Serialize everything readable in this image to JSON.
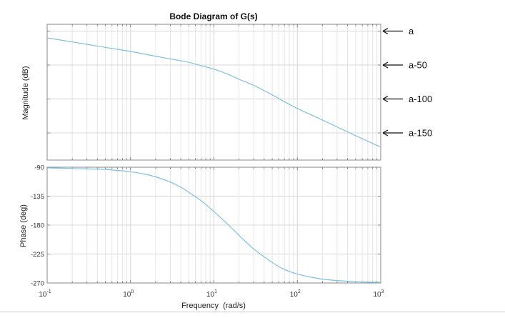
{
  "chart_data": {
    "type": "line",
    "title": "Bode Diagram of G(s)",
    "xlabel": "Frequency  (rad/s)",
    "x_scale": "log",
    "xlim": [
      0.1,
      1000
    ],
    "x_ticks": [
      {
        "value": 0.1,
        "base": "10",
        "exp": "-1"
      },
      {
        "value": 1,
        "base": "10",
        "exp": "0"
      },
      {
        "value": 10,
        "base": "10",
        "exp": "1"
      },
      {
        "value": 100,
        "base": "10",
        "exp": "2"
      },
      {
        "value": 1000,
        "base": "10",
        "exp": "3"
      }
    ],
    "grid": true,
    "line_color": "#7fbfe2",
    "magnitude": {
      "ylabel": "Magnitude (dB)",
      "ylim": [
        -190,
        10
      ],
      "annotations": [
        {
          "label": "a",
          "value": 0
        },
        {
          "label": "a-50",
          "value": -50
        },
        {
          "label": "a-100",
          "value": -100
        },
        {
          "label": "a-150",
          "value": -150
        }
      ],
      "series": [
        {
          "x": [
            0.1,
            0.2,
            0.5,
            1,
            2,
            3,
            5,
            7,
            10,
            15,
            20,
            30,
            50,
            70,
            100,
            200,
            500,
            1000
          ],
          "values": [
            -10,
            -16,
            -24,
            -30,
            -37,
            -41,
            -46,
            -51,
            -56,
            -64,
            -71,
            -80,
            -94,
            -104,
            -114,
            -131,
            -154,
            -171
          ]
        }
      ]
    },
    "phase": {
      "ylabel": "Phase (deg)",
      "ylim": [
        -270,
        -90
      ],
      "y_ticks": [
        -90,
        -135,
        -180,
        -225,
        -270
      ],
      "series": [
        {
          "x": [
            0.1,
            0.2,
            0.3,
            0.5,
            0.7,
            1,
            1.5,
            2,
            3,
            4,
            5,
            7,
            10,
            15,
            20,
            30,
            50,
            70,
            100,
            200,
            500,
            1000
          ],
          "values": [
            -91,
            -92,
            -92.5,
            -93.5,
            -95,
            -97,
            -101,
            -105,
            -113,
            -121,
            -129,
            -142,
            -159,
            -180,
            -196,
            -217,
            -238,
            -249,
            -256,
            -264,
            -268,
            -269
          ]
        }
      ]
    }
  }
}
